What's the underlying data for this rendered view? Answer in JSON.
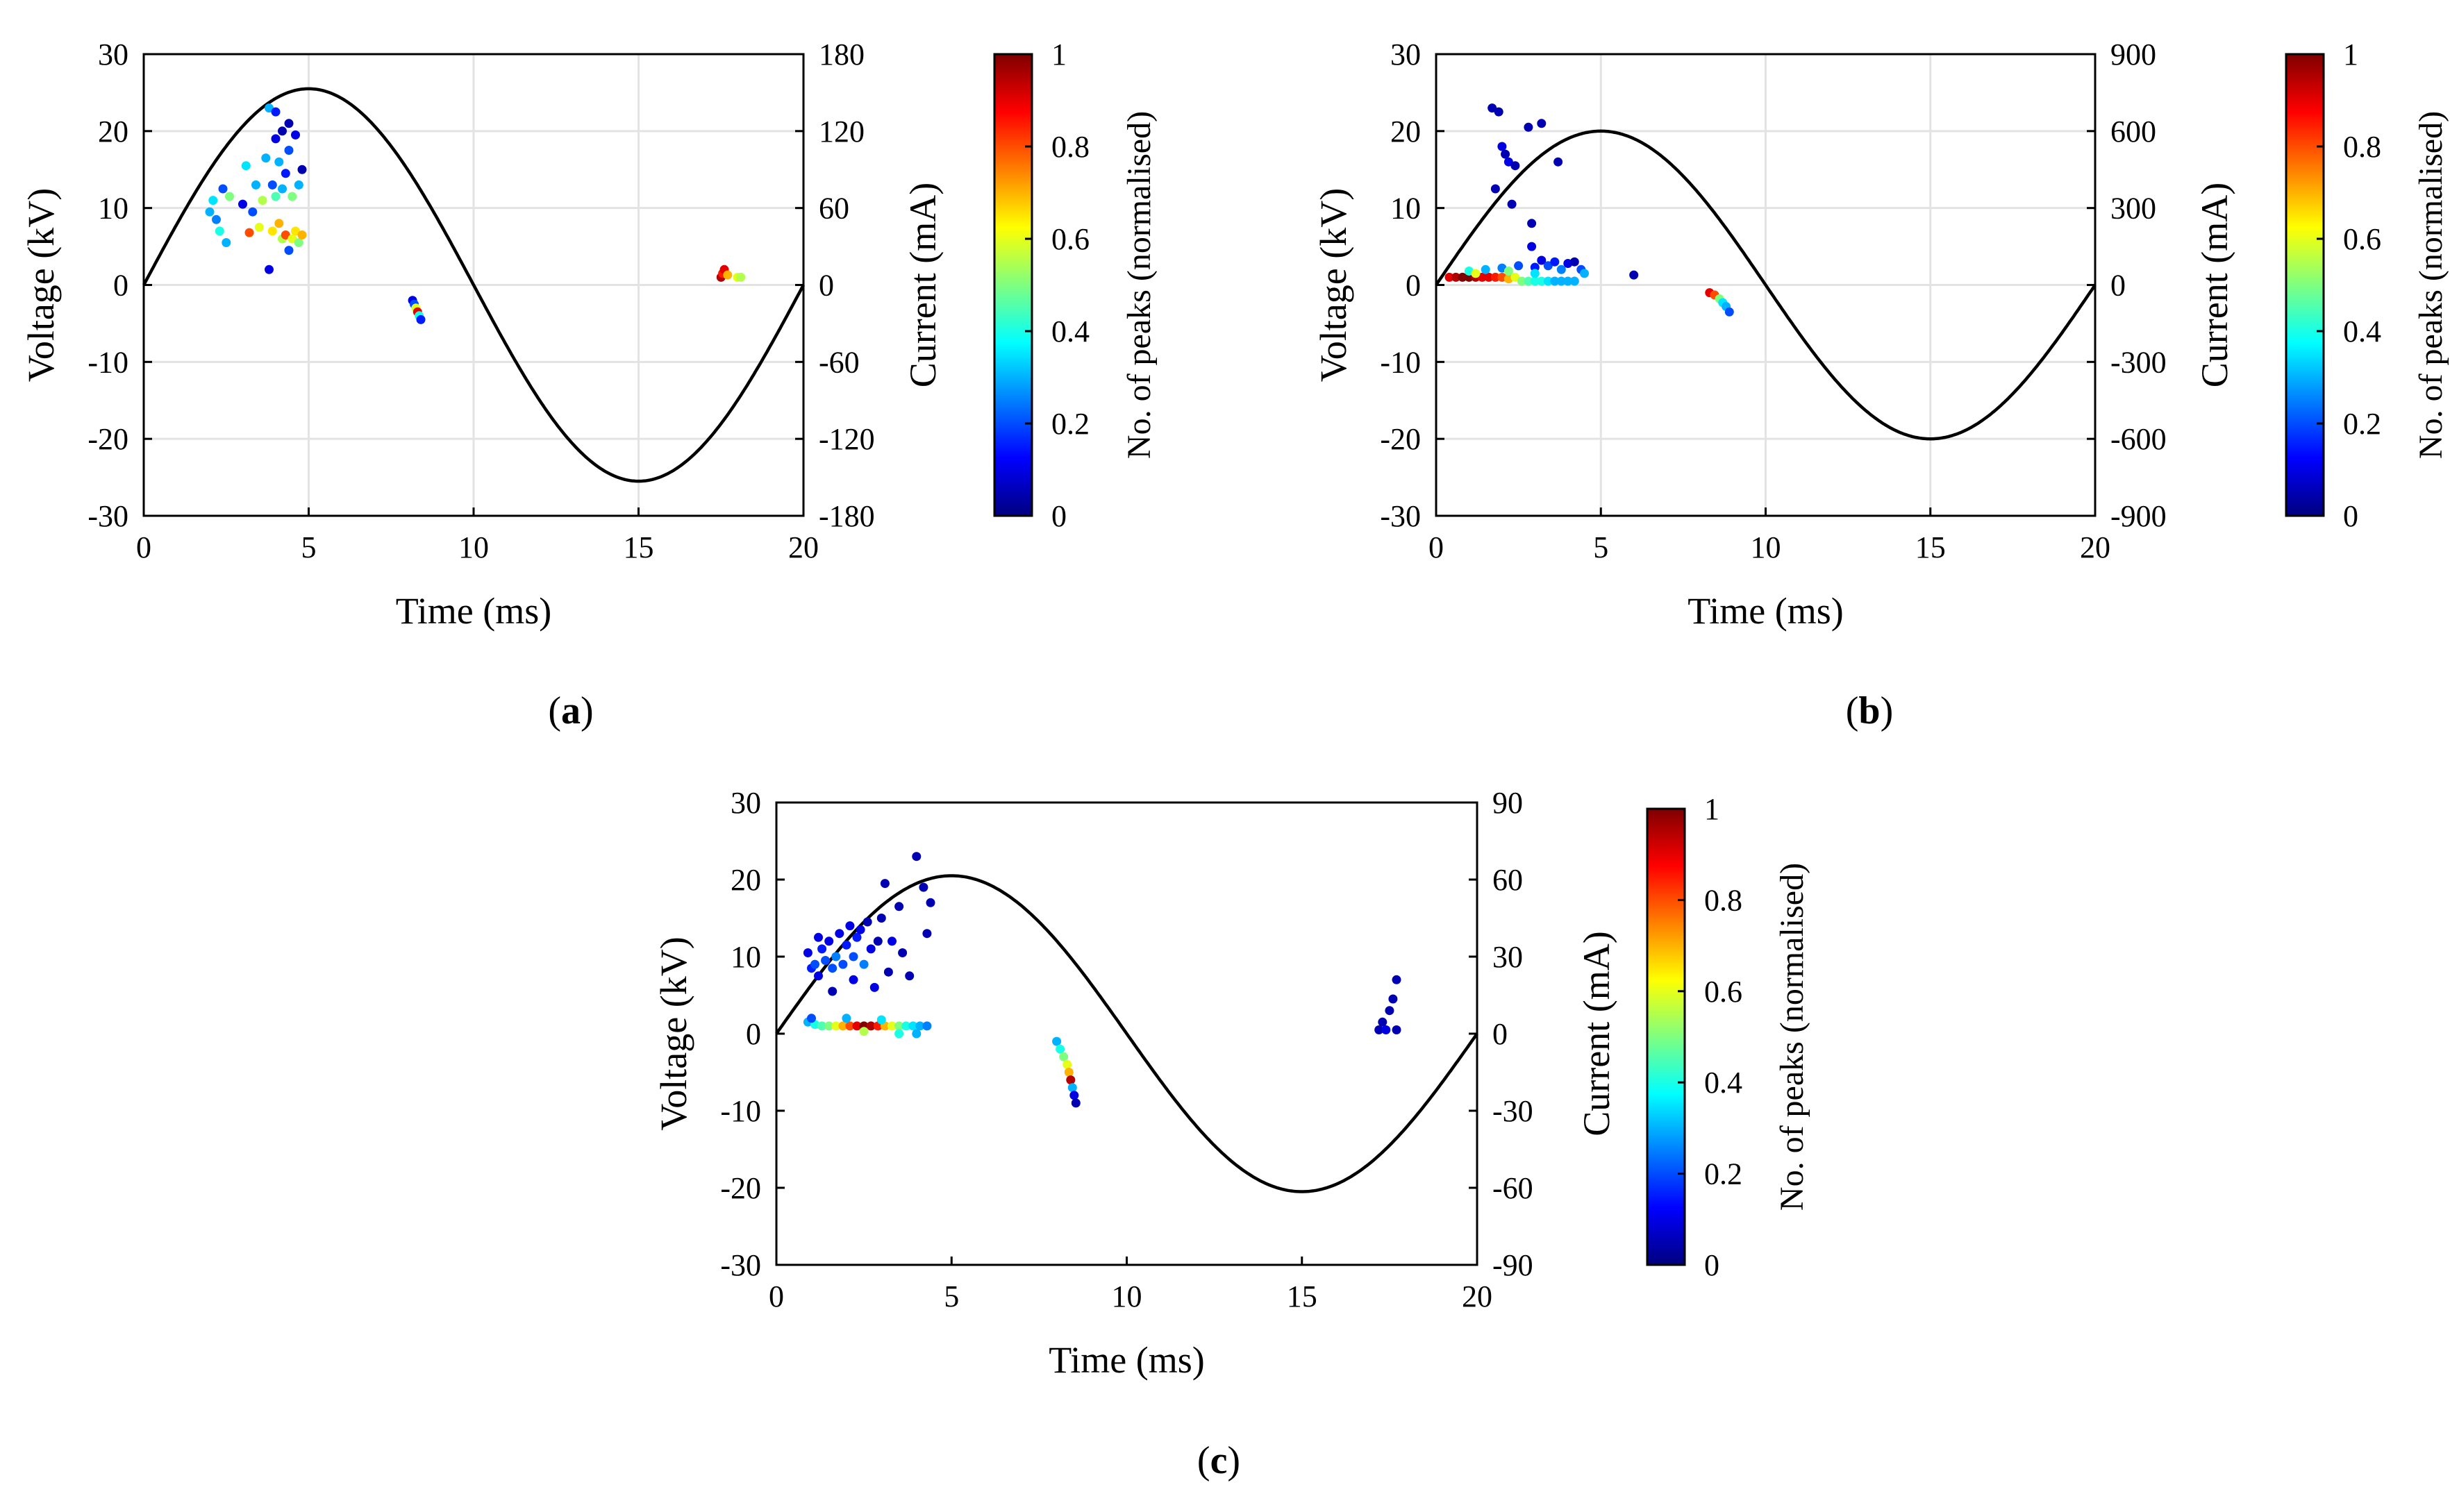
{
  "figure": {
    "panels": [
      "a",
      "b",
      "c"
    ]
  },
  "colorbar": {
    "label": "No. of peaks (normalised)",
    "ticks": [
      "0",
      "0.2",
      "0.4",
      "0.6",
      "0.8",
      "1"
    ],
    "colormap": "jet",
    "stops": [
      "#00007f",
      "#0000ff",
      "#007fff",
      "#00ffff",
      "#7fff7f",
      "#ffff00",
      "#ff7f00",
      "#ff0000",
      "#7f0000"
    ]
  },
  "chart_data": [
    {
      "type": "scatter",
      "caption_letter": "a",
      "xlabel": "Time (ms)",
      "ylabel": "Voltage (kV)",
      "y2label": "Current (mA)",
      "xlim": [
        0,
        20
      ],
      "ylim": [
        -30,
        30
      ],
      "y2lim": [
        -180,
        180
      ],
      "xticks": [
        "0",
        "5",
        "10",
        "15",
        "20"
      ],
      "yticks": [
        "30",
        "20",
        "10",
        "0",
        "-10",
        "-20",
        "-30"
      ],
      "y2ticks": [
        "180",
        "120",
        "60",
        "0",
        "-60",
        "-120",
        "-180"
      ],
      "grid": true,
      "voltage_amplitude_kv": 25.5,
      "points": [
        [
          2.0,
          9.5,
          0.3
        ],
        [
          2.1,
          11.0,
          0.35
        ],
        [
          2.2,
          8.5,
          0.25
        ],
        [
          2.3,
          7.0,
          0.4
        ],
        [
          2.4,
          12.5,
          0.2
        ],
        [
          2.5,
          5.5,
          0.3
        ],
        [
          2.6,
          11.5,
          0.5
        ],
        [
          3.0,
          10.5,
          0.1
        ],
        [
          3.1,
          15.5,
          0.35
        ],
        [
          3.2,
          6.8,
          0.8
        ],
        [
          3.3,
          9.5,
          0.2
        ],
        [
          3.4,
          13.0,
          0.3
        ],
        [
          3.5,
          7.5,
          0.6
        ],
        [
          3.6,
          11.0,
          0.55
        ],
        [
          3.7,
          16.5,
          0.3
        ],
        [
          3.8,
          23.0,
          0.3
        ],
        [
          3.8,
          2.0,
          0.1
        ],
        [
          3.9,
          13.0,
          0.2
        ],
        [
          3.9,
          7.0,
          0.65
        ],
        [
          4.0,
          22.5,
          0.15
        ],
        [
          4.0,
          19.0,
          0.1
        ],
        [
          4.0,
          11.5,
          0.45
        ],
        [
          4.1,
          16.0,
          0.3
        ],
        [
          4.1,
          8.0,
          0.7
        ],
        [
          4.2,
          20.0,
          0.05
        ],
        [
          4.2,
          12.5,
          0.3
        ],
        [
          4.2,
          6.0,
          0.55
        ],
        [
          4.3,
          14.5,
          0.15
        ],
        [
          4.3,
          6.5,
          0.8
        ],
        [
          4.4,
          21.0,
          0.05
        ],
        [
          4.4,
          17.5,
          0.2
        ],
        [
          4.4,
          4.5,
          0.2
        ],
        [
          4.5,
          11.5,
          0.5
        ],
        [
          4.5,
          6.0,
          0.6
        ],
        [
          4.6,
          19.5,
          0.1
        ],
        [
          4.6,
          7.0,
          0.65
        ],
        [
          4.7,
          13.0,
          0.3
        ],
        [
          4.7,
          5.5,
          0.5
        ],
        [
          4.8,
          15.0,
          0.05
        ],
        [
          4.8,
          6.5,
          0.7
        ],
        [
          8.15,
          -2.0,
          0.1
        ],
        [
          8.2,
          -2.5,
          0.2
        ],
        [
          8.25,
          -3.0,
          0.6
        ],
        [
          8.3,
          -3.5,
          0.9
        ],
        [
          8.35,
          -4.0,
          0.4
        ],
        [
          8.4,
          -4.5,
          0.15
        ],
        [
          17.5,
          1.0,
          0.95
        ],
        [
          17.55,
          1.5,
          0.85
        ],
        [
          17.6,
          2.0,
          0.9
        ],
        [
          17.7,
          1.3,
          0.7
        ],
        [
          18.0,
          1.0,
          0.6
        ],
        [
          18.1,
          1.0,
          0.55
        ]
      ]
    },
    {
      "type": "scatter",
      "caption_letter": "b",
      "xlabel": "Time (ms)",
      "ylabel": "Voltage (kV)",
      "y2label": "Current (mA)",
      "xlim": [
        0,
        20
      ],
      "ylim": [
        -30,
        30
      ],
      "y2lim": [
        -900,
        900
      ],
      "xticks": [
        "0",
        "5",
        "10",
        "15",
        "20"
      ],
      "yticks": [
        "30",
        "20",
        "10",
        "0",
        "-10",
        "-20",
        "-30"
      ],
      "y2ticks": [
        "900",
        "600",
        "300",
        "0",
        "-300",
        "-600",
        "-900"
      ],
      "grid": true,
      "voltage_amplitude_kv": 20.0,
      "points": [
        [
          1.7,
          23.0,
          0.05
        ],
        [
          1.9,
          22.5,
          0.05
        ],
        [
          2.0,
          18.0,
          0.1
        ],
        [
          2.1,
          17.0,
          0.05
        ],
        [
          2.2,
          16.0,
          0.1
        ],
        [
          2.4,
          15.5,
          0.05
        ],
        [
          2.3,
          10.5,
          0.05
        ],
        [
          2.8,
          20.5,
          0.05
        ],
        [
          3.2,
          21.0,
          0.05
        ],
        [
          3.7,
          16.0,
          0.05
        ],
        [
          2.9,
          8.0,
          0.05
        ],
        [
          2.9,
          5.0,
          0.1
        ],
        [
          1.8,
          12.5,
          0.05
        ],
        [
          0.4,
          1.0,
          0.9
        ],
        [
          0.6,
          1.0,
          0.95
        ],
        [
          0.8,
          1.0,
          1.0
        ],
        [
          1.0,
          1.0,
          1.0
        ],
        [
          1.2,
          1.0,
          0.95
        ],
        [
          1.4,
          1.0,
          0.9
        ],
        [
          1.6,
          1.0,
          0.9
        ],
        [
          1.8,
          1.0,
          0.85
        ],
        [
          2.0,
          1.0,
          0.8
        ],
        [
          2.2,
          0.8,
          0.7
        ],
        [
          2.4,
          1.0,
          0.6
        ],
        [
          2.6,
          0.5,
          0.5
        ],
        [
          2.8,
          0.5,
          0.45
        ],
        [
          3.0,
          0.5,
          0.4
        ],
        [
          3.2,
          0.5,
          0.4
        ],
        [
          3.4,
          0.5,
          0.35
        ],
        [
          3.6,
          0.5,
          0.3
        ],
        [
          3.8,
          0.5,
          0.3
        ],
        [
          4.0,
          0.5,
          0.3
        ],
        [
          4.2,
          0.5,
          0.3
        ],
        [
          1.0,
          1.8,
          0.4
        ],
        [
          1.5,
          2.0,
          0.3
        ],
        [
          2.0,
          2.2,
          0.25
        ],
        [
          2.5,
          2.5,
          0.2
        ],
        [
          3.0,
          2.3,
          0.15
        ],
        [
          3.2,
          3.2,
          0.1
        ],
        [
          3.4,
          2.5,
          0.2
        ],
        [
          3.6,
          3.0,
          0.15
        ],
        [
          3.8,
          2.0,
          0.25
        ],
        [
          4.0,
          2.8,
          0.1
        ],
        [
          4.2,
          3.0,
          0.05
        ],
        [
          4.4,
          2.0,
          0.2
        ],
        [
          4.5,
          1.5,
          0.3
        ],
        [
          3.0,
          1.5,
          0.35
        ],
        [
          2.2,
          1.8,
          0.5
        ],
        [
          1.2,
          1.5,
          0.6
        ],
        [
          6.0,
          1.3,
          0.05
        ],
        [
          8.3,
          -1.0,
          0.9
        ],
        [
          8.45,
          -1.3,
          0.8
        ],
        [
          8.6,
          -1.8,
          0.5
        ],
        [
          8.7,
          -2.3,
          0.35
        ],
        [
          8.8,
          -2.8,
          0.3
        ],
        [
          8.9,
          -3.5,
          0.2
        ]
      ]
    },
    {
      "type": "scatter",
      "caption_letter": "c",
      "xlabel": "Time (ms)",
      "ylabel": "Voltage (kV)",
      "y2label": "Current (mA)",
      "xlim": [
        0,
        20
      ],
      "ylim": [
        -30,
        30
      ],
      "y2lim": [
        -90,
        90
      ],
      "xticks": [
        "0",
        "5",
        "10",
        "15",
        "20"
      ],
      "yticks": [
        "30",
        "20",
        "10",
        "0",
        "-10",
        "-20",
        "-30"
      ],
      "y2ticks": [
        "90",
        "60",
        "30",
        "0",
        "-30",
        "-60",
        "-90"
      ],
      "grid": false,
      "voltage_amplitude_kv": 20.5,
      "points": [
        [
          0.9,
          10.5,
          0.1
        ],
        [
          1.0,
          8.5,
          0.15
        ],
        [
          1.1,
          9.0,
          0.2
        ],
        [
          1.2,
          7.5,
          0.1
        ],
        [
          1.3,
          11.0,
          0.15
        ],
        [
          1.4,
          9.5,
          0.2
        ],
        [
          1.5,
          12.0,
          0.1
        ],
        [
          1.6,
          8.5,
          0.2
        ],
        [
          1.7,
          10.0,
          0.25
        ],
        [
          1.8,
          13.0,
          0.1
        ],
        [
          1.9,
          9.0,
          0.2
        ],
        [
          2.0,
          11.5,
          0.15
        ],
        [
          2.1,
          14.0,
          0.1
        ],
        [
          2.2,
          10.0,
          0.2
        ],
        [
          2.3,
          12.5,
          0.15
        ],
        [
          2.4,
          13.5,
          0.1
        ],
        [
          2.5,
          9.0,
          0.25
        ],
        [
          2.6,
          14.5,
          0.05
        ],
        [
          2.7,
          11.0,
          0.1
        ],
        [
          2.8,
          6.0,
          0.1
        ],
        [
          2.9,
          12.0,
          0.05
        ],
        [
          3.0,
          15.0,
          0.05
        ],
        [
          3.1,
          19.5,
          0.05
        ],
        [
          3.2,
          8.0,
          0.05
        ],
        [
          3.3,
          12.0,
          0.1
        ],
        [
          3.5,
          16.5,
          0.05
        ],
        [
          3.6,
          10.5,
          0.05
        ],
        [
          3.8,
          7.5,
          0.05
        ],
        [
          4.0,
          23.0,
          0.05
        ],
        [
          4.2,
          19.0,
          0.05
        ],
        [
          4.3,
          13.0,
          0.05
        ],
        [
          4.4,
          17.0,
          0.05
        ],
        [
          1.6,
          5.5,
          0.05
        ],
        [
          2.2,
          7.0,
          0.1
        ],
        [
          1.2,
          12.5,
          0.1
        ],
        [
          0.9,
          1.5,
          0.3
        ],
        [
          1.1,
          1.2,
          0.4
        ],
        [
          1.3,
          1.0,
          0.45
        ],
        [
          1.5,
          1.0,
          0.5
        ],
        [
          1.7,
          1.0,
          0.6
        ],
        [
          1.9,
          1.0,
          0.7
        ],
        [
          2.1,
          1.0,
          0.8
        ],
        [
          2.3,
          1.0,
          0.9
        ],
        [
          2.5,
          1.0,
          1.0
        ],
        [
          2.7,
          1.0,
          0.95
        ],
        [
          2.9,
          1.0,
          0.85
        ],
        [
          3.1,
          1.0,
          0.7
        ],
        [
          3.3,
          1.0,
          0.6
        ],
        [
          3.5,
          1.0,
          0.5
        ],
        [
          3.7,
          1.0,
          0.4
        ],
        [
          3.9,
          1.0,
          0.35
        ],
        [
          4.1,
          1.0,
          0.3
        ],
        [
          4.3,
          1.0,
          0.25
        ],
        [
          1.0,
          2.0,
          0.2
        ],
        [
          2.0,
          2.0,
          0.3
        ],
        [
          3.0,
          1.8,
          0.35
        ],
        [
          4.0,
          0.0,
          0.3
        ],
        [
          3.5,
          0.0,
          0.4
        ],
        [
          2.5,
          0.3,
          0.55
        ],
        [
          8.0,
          -1.0,
          0.3
        ],
        [
          8.1,
          -2.0,
          0.4
        ],
        [
          8.2,
          -3.0,
          0.5
        ],
        [
          8.3,
          -4.0,
          0.6
        ],
        [
          8.35,
          -5.0,
          0.7
        ],
        [
          8.4,
          -6.0,
          0.95
        ],
        [
          8.45,
          -7.0,
          0.3
        ],
        [
          8.5,
          -8.0,
          0.1
        ],
        [
          8.55,
          -9.0,
          0.05
        ],
        [
          17.2,
          0.5,
          0.05
        ],
        [
          17.3,
          1.5,
          0.05
        ],
        [
          17.4,
          0.5,
          0.1
        ],
        [
          17.5,
          3.0,
          0.05
        ],
        [
          17.6,
          4.5,
          0.05
        ],
        [
          17.7,
          7.0,
          0.05
        ],
        [
          17.7,
          0.5,
          0.05
        ]
      ]
    }
  ]
}
